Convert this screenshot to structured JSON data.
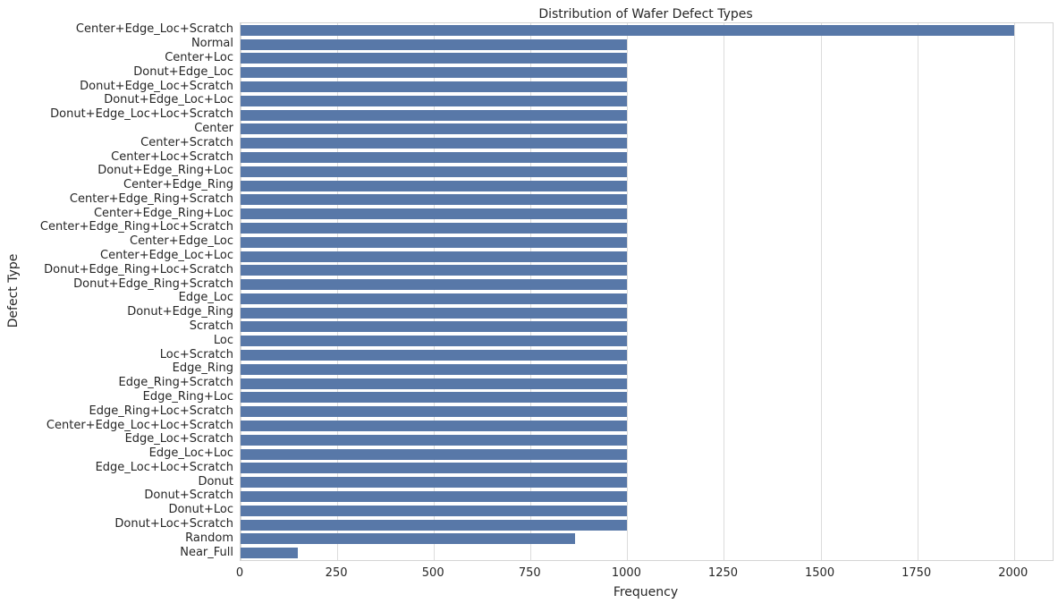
{
  "chart_data": {
    "type": "bar",
    "orientation": "horizontal",
    "title": "Distribution of Wafer Defect Types",
    "xlabel": "Frequency",
    "ylabel": "Defect Type",
    "xlim": [
      0,
      2100
    ],
    "x_ticks": [
      0,
      250,
      500,
      750,
      1000,
      1250,
      1500,
      1750,
      2000
    ],
    "grid": true,
    "legend": "none",
    "bar_color": "#5878a8",
    "grid_color": "#dcdcdc",
    "categories": [
      "Center+Edge_Loc+Scratch",
      "Normal",
      "Center+Loc",
      "Donut+Edge_Loc",
      "Donut+Edge_Loc+Scratch",
      "Donut+Edge_Loc+Loc",
      "Donut+Edge_Loc+Loc+Scratch",
      "Center",
      "Center+Scratch",
      "Center+Loc+Scratch",
      "Donut+Edge_Ring+Loc",
      "Center+Edge_Ring",
      "Center+Edge_Ring+Scratch",
      "Center+Edge_Ring+Loc",
      "Center+Edge_Ring+Loc+Scratch",
      "Center+Edge_Loc",
      "Center+Edge_Loc+Loc",
      "Donut+Edge_Ring+Loc+Scratch",
      "Donut+Edge_Ring+Scratch",
      "Edge_Loc",
      "Donut+Edge_Ring",
      "Scratch",
      "Loc",
      "Loc+Scratch",
      "Edge_Ring",
      "Edge_Ring+Scratch",
      "Edge_Ring+Loc",
      "Edge_Ring+Loc+Scratch",
      "Center+Edge_Loc+Loc+Scratch",
      "Edge_Loc+Scratch",
      "Edge_Loc+Loc",
      "Edge_Loc+Loc+Scratch",
      "Donut",
      "Donut+Scratch",
      "Donut+Loc",
      "Donut+Loc+Scratch",
      "Random",
      "Near_Full"
    ],
    "values": [
      2000,
      1000,
      1000,
      1000,
      1000,
      1000,
      1000,
      1000,
      1000,
      1000,
      1000,
      1000,
      1000,
      1000,
      1000,
      1000,
      1000,
      1000,
      1000,
      1000,
      1000,
      1000,
      1000,
      1000,
      1000,
      1000,
      1000,
      1000,
      1000,
      1000,
      1000,
      1000,
      1000,
      1000,
      1000,
      1000,
      866,
      149
    ]
  }
}
